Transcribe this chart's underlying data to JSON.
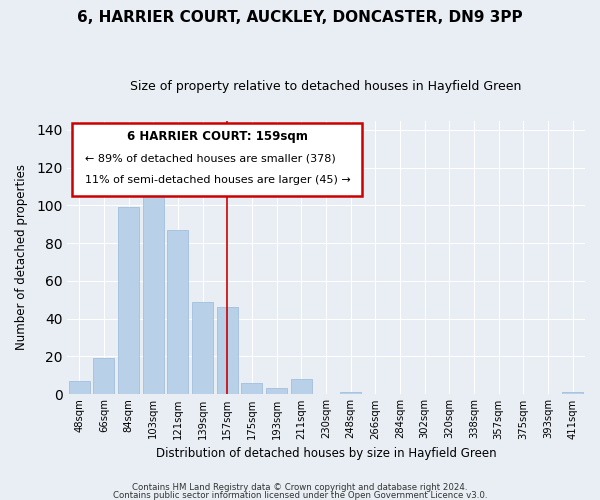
{
  "title": "6, HARRIER COURT, AUCKLEY, DONCASTER, DN9 3PP",
  "subtitle": "Size of property relative to detached houses in Hayfield Green",
  "xlabel": "Distribution of detached houses by size in Hayfield Green",
  "ylabel": "Number of detached properties",
  "bar_labels": [
    "48sqm",
    "66sqm",
    "84sqm",
    "103sqm",
    "121sqm",
    "139sqm",
    "157sqm",
    "175sqm",
    "193sqm",
    "211sqm",
    "230sqm",
    "248sqm",
    "266sqm",
    "284sqm",
    "302sqm",
    "320sqm",
    "338sqm",
    "357sqm",
    "375sqm",
    "393sqm",
    "411sqm"
  ],
  "bar_values": [
    7,
    19,
    99,
    107,
    87,
    49,
    46,
    6,
    3,
    8,
    0,
    1,
    0,
    0,
    0,
    0,
    0,
    0,
    0,
    0,
    1
  ],
  "bar_color": "#b8d0e8",
  "bar_edge_color": "#9ab8d8",
  "highlight_index": 6,
  "vline_color": "#cc0000",
  "annotation_title": "6 HARRIER COURT: 159sqm",
  "annotation_line1": "← 89% of detached houses are smaller (378)",
  "annotation_line2": "11% of semi-detached houses are larger (45) →",
  "box_facecolor": "#ffffff",
  "box_edgecolor": "#cc0000",
  "ylim": [
    0,
    145
  ],
  "yticks": [
    0,
    20,
    40,
    60,
    80,
    100,
    120,
    140
  ],
  "footer_line1": "Contains HM Land Registry data © Crown copyright and database right 2024.",
  "footer_line2": "Contains public sector information licensed under the Open Government Licence v3.0.",
  "bg_color": "#e8eef4",
  "plot_bg_color": "#e8eef4",
  "grid_color": "#ffffff"
}
